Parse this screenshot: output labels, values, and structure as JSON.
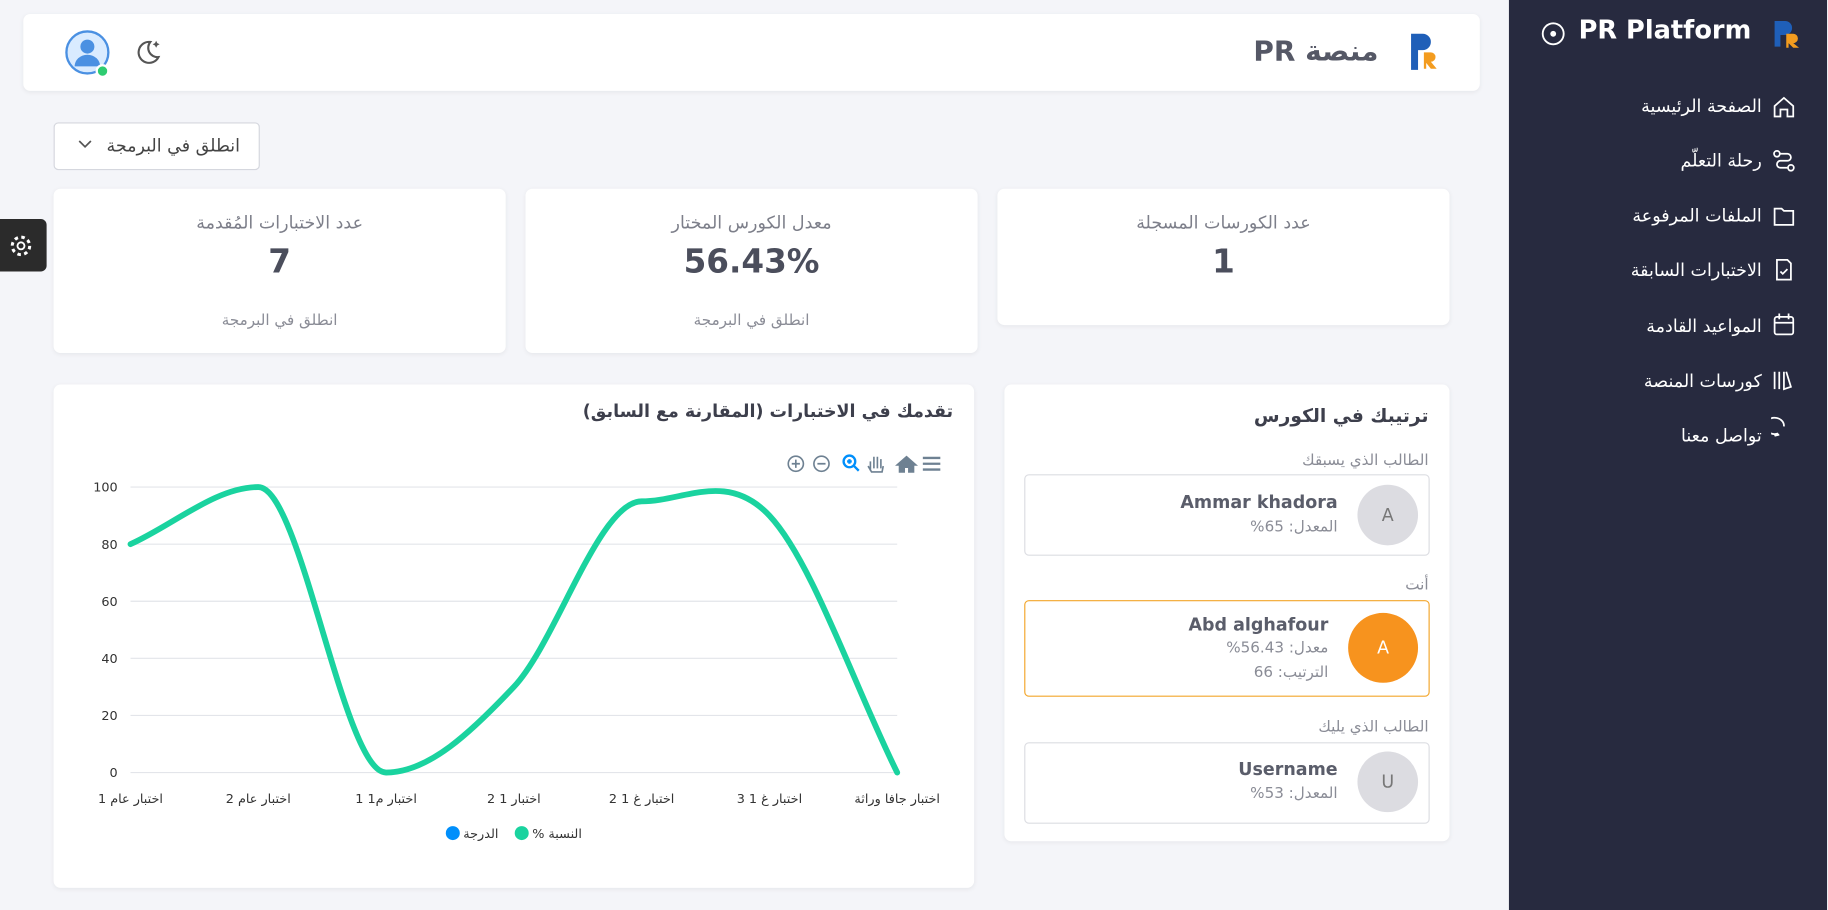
{
  "sidebar": {
    "brand": "PR Platform",
    "menu": [
      "الصفحة الرئيسية",
      "رحلة التعلّم",
      "الملفات المرفوعة",
      "الاختبارات السابقة",
      "المواعيد القادمة",
      "كورسات المنصة",
      "تواصل معنا"
    ]
  },
  "header": {
    "title": "منصة PR"
  },
  "course_select": "انطلق في البرمجة",
  "stats": [
    {
      "label": "عدد الكورسات المسجلة",
      "value": 1
    },
    {
      "label": "معدل الكورس المختار",
      "value": "56.43%",
      "note": "انطلق في البرمجة"
    },
    {
      "label": "عدد الاختبارات المُقدمة",
      "value": 7,
      "note": "انطلق في البرمجة"
    }
  ],
  "ranking": {
    "title": "ترتيبك في الكورس",
    "entries": [
      {
        "heading": "الطالب الذي يسبقك",
        "initial": "A",
        "name": "Ammar khadora",
        "lines": [
          "المعدل: 65%"
        ]
      },
      {
        "heading": "أنت",
        "initial": "A",
        "name": "Abd alghafour",
        "lines": [
          "معدل: 56.43%",
          "الترتيب: 66"
        ]
      },
      {
        "heading": "الطالب الذي يليك",
        "initial": "U",
        "name": "Username",
        "lines": [
          "المعدل: 53%"
        ]
      }
    ]
  },
  "chart_data": {
    "type": "line",
    "title": "تقدمك في الاختبارات (المقارنة مع السابق)",
    "categories": [
      "اختبار عام 1",
      "اختبار عام 2",
      "اختبار م1 1",
      "اختبار 1 2",
      "اختبار غ 1 2",
      "اختبار غ 1 3",
      "اختبار جافا وراثة"
    ],
    "series": [
      {
        "name": "الدرجة",
        "color": "#008ffb",
        "values": [
          null,
          null,
          null,
          null,
          null,
          null,
          null
        ]
      },
      {
        "name": "% النسبة",
        "color": "#1ad39f",
        "values": [
          80,
          100,
          0,
          30,
          95,
          90,
          0
        ]
      }
    ],
    "ylim": [
      0,
      100
    ],
    "yticks": [
      0,
      20,
      40,
      60,
      80,
      100
    ],
    "grid": true,
    "legend": "bottom"
  }
}
